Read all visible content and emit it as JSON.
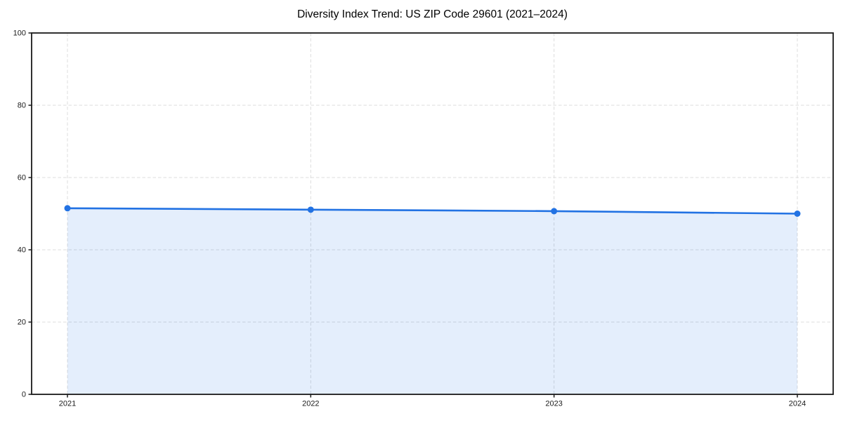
{
  "chart_data": {
    "type": "area",
    "title": "Diversity Index Trend: US ZIP Code 29601 (2021–2024)",
    "x": [
      2021,
      2022,
      2023,
      2024
    ],
    "series": [
      {
        "name": "Diversity Index",
        "values": [
          51.5,
          51.1,
          50.7,
          50.0
        ]
      }
    ],
    "xlabel": "",
    "ylabel": "",
    "ylim": [
      0,
      100
    ],
    "yticks": [
      0,
      20,
      40,
      60,
      80,
      100
    ],
    "grid": true,
    "grid_style": "dashed",
    "legend": false,
    "colors": {
      "line": "#2272e3",
      "marker": "#2272e3",
      "fill": "#2272e3",
      "fill_opacity": 0.12,
      "grid": "#d9d9d9",
      "spine": "#1a1a1a",
      "tick_label": "#1a1a1a",
      "title": "#000000",
      "background": "#ffffff"
    }
  }
}
